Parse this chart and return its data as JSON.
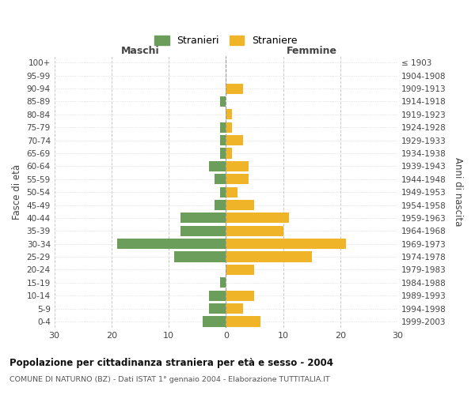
{
  "age_groups": [
    "100+",
    "95-99",
    "90-94",
    "85-89",
    "80-84",
    "75-79",
    "70-74",
    "65-69",
    "60-64",
    "55-59",
    "50-54",
    "45-49",
    "40-44",
    "35-39",
    "30-34",
    "25-29",
    "20-24",
    "15-19",
    "10-14",
    "5-9",
    "0-4"
  ],
  "birth_years": [
    "≤ 1903",
    "1904-1908",
    "1909-1913",
    "1914-1918",
    "1919-1923",
    "1924-1928",
    "1929-1933",
    "1934-1938",
    "1939-1943",
    "1944-1948",
    "1949-1953",
    "1954-1958",
    "1959-1963",
    "1964-1968",
    "1969-1973",
    "1974-1978",
    "1979-1983",
    "1984-1988",
    "1989-1993",
    "1994-1998",
    "1999-2003"
  ],
  "males": [
    0,
    0,
    0,
    1,
    0,
    1,
    1,
    1,
    3,
    2,
    1,
    2,
    8,
    8,
    19,
    9,
    0,
    1,
    3,
    3,
    4
  ],
  "females": [
    0,
    0,
    3,
    0,
    1,
    1,
    3,
    1,
    4,
    4,
    2,
    5,
    11,
    10,
    21,
    15,
    5,
    0,
    5,
    3,
    6
  ],
  "male_color": "#6a9e5a",
  "female_color": "#f0b429",
  "title": "Popolazione per cittadinanza straniera per età e sesso - 2004",
  "subtitle": "COMUNE DI NATURNO (BZ) - Dati ISTAT 1° gennaio 2004 - Elaborazione TUTTITALIA.IT",
  "xlabel_left": "Maschi",
  "xlabel_right": "Femmine",
  "ylabel_left": "Fasce di età",
  "ylabel_right": "Anni di nascita",
  "legend_male": "Stranieri",
  "legend_female": "Straniere",
  "xlim": 30,
  "bg_color": "#ffffff",
  "grid_color": "#cccccc",
  "bar_height": 0.8
}
